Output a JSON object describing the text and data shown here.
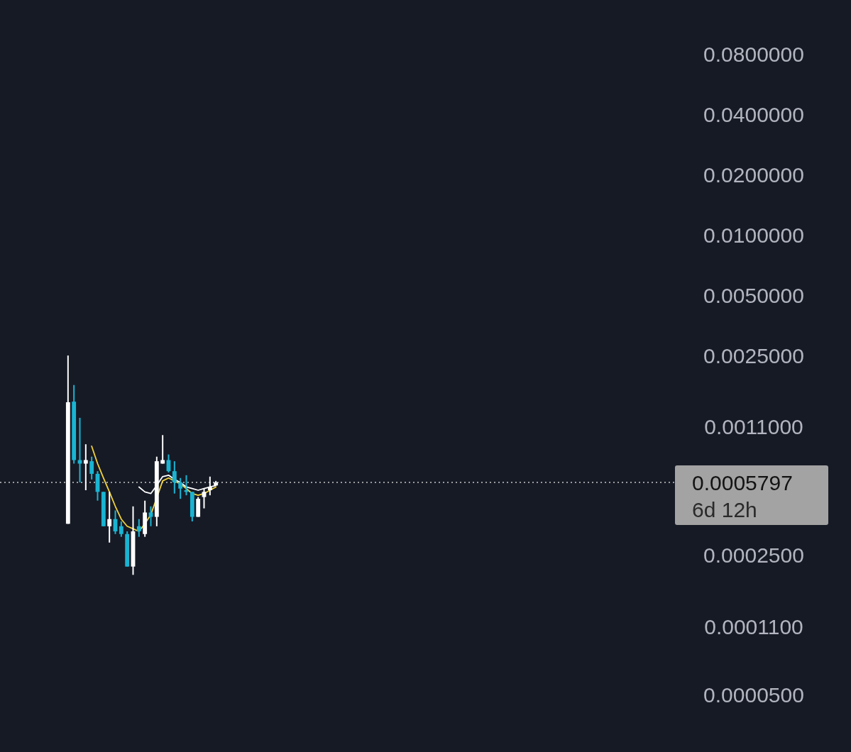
{
  "chart_data": {
    "type": "candlestick",
    "log": "y",
    "categories": [
      null,
      null,
      null,
      null,
      null,
      null,
      null,
      null,
      null,
      null,
      null,
      null,
      null,
      null,
      null,
      null,
      null,
      null,
      null,
      null,
      null,
      null,
      null,
      null,
      null,
      null,
      null,
      null,
      null,
      null,
      null,
      null,
      null,
      null,
      null,
      null,
      null,
      null,
      null,
      null,
      null,
      null,
      null,
      null,
      null,
      null,
      null,
      null,
      null,
      null,
      null,
      null,
      null,
      null,
      null,
      null,
      null,
      null,
      null,
      null,
      null,
      null,
      null,
      null,
      null,
      null,
      null,
      null,
      null,
      null,
      null,
      null,
      null,
      null,
      null,
      null,
      null,
      null,
      null,
      null,
      null,
      null,
      null,
      null,
      null,
      null,
      null,
      null,
      null,
      null,
      null,
      null,
      null,
      null,
      null,
      null,
      null,
      null,
      null,
      null,
      null,
      null,
      null,
      null,
      null,
      null,
      null,
      null,
      null,
      null,
      null,
      null,
      null,
      null
    ],
    "ohlc": [
      null,
      null,
      null,
      null,
      null,
      null,
      null,
      null,
      null,
      null,
      null,
      [
        0.00036,
        0.0025,
        0.00036,
        0.00146
      ],
      [
        0.00147,
        0.00178,
        0.00072,
        0.00075
      ],
      [
        0.00075,
        0.00122,
        0.00058,
        0.00072
      ],
      [
        0.00072,
        0.0009,
        0.00053,
        0.00075
      ],
      [
        0.00074,
        0.00078,
        0.0006,
        0.00064
      ],
      [
        0.00064,
        0.00066,
        0.00047,
        0.00052
      ],
      [
        0.00052,
        0.00052,
        0.00035,
        0.00035
      ],
      [
        0.00035,
        0.00052,
        0.00029,
        0.00038
      ],
      [
        0.00038,
        0.00042,
        0.00032,
        0.00033
      ],
      [
        0.00035,
        0.00037,
        0.00031,
        0.00032
      ],
      [
        0.00032,
        0.00033,
        0.00022,
        0.00022
      ],
      [
        0.00022,
        0.00044,
        0.0002,
        0.00033
      ],
      [
        0.00035,
        0.00038,
        0.00031,
        0.00033
      ],
      [
        0.00032,
        0.00047,
        0.00031,
        0.00041
      ],
      [
        0.00041,
        0.00044,
        0.00035,
        0.00039
      ],
      [
        0.00039,
        0.00078,
        0.00035,
        0.00074
      ],
      [
        0.00072,
        0.001,
        0.00072,
        0.00075
      ],
      [
        0.00075,
        0.0008,
        0.00065,
        0.00066
      ],
      [
        0.00066,
        0.00074,
        0.00051,
        0.00058
      ],
      [
        0.00058,
        0.00061,
        0.00048,
        0.00054
      ],
      [
        0.00053,
        0.00063,
        0.0005,
        0.00052
      ],
      [
        0.00052,
        0.00052,
        0.00037,
        0.00039
      ],
      [
        0.00039,
        0.00049,
        0.00039,
        0.00048
      ],
      [
        0.00049,
        0.00054,
        0.00043,
        0.00052
      ],
      [
        0.00053,
        0.00062,
        0.0005,
        0.00055
      ],
      [
        0.00056,
        0.00059,
        0.00056,
        0.00058
      ],
      null,
      null,
      null,
      null,
      null,
      null,
      null,
      null,
      null,
      null,
      null,
      null,
      null,
      null,
      null,
      null,
      null,
      null,
      null,
      null,
      null,
      null,
      null,
      null,
      null,
      null,
      null,
      null,
      null,
      null,
      null,
      null,
      null,
      null,
      null,
      null,
      null,
      null,
      null,
      null,
      null,
      null,
      null,
      null,
      null,
      null,
      null,
      null,
      null,
      null,
      null,
      null,
      null,
      null,
      null,
      null,
      null,
      null,
      null,
      null,
      null,
      null,
      null,
      null,
      null,
      null,
      null,
      null,
      null,
      null,
      null,
      null,
      null,
      null,
      null,
      null,
      null
    ],
    "colors": [
      null,
      null,
      null,
      null,
      null,
      null,
      null,
      null,
      null,
      null,
      null,
      "#ffffff",
      "#1ab4d2",
      "#1ab4d2",
      "#ffffff",
      "#1ab4d2",
      "#1ab4d2",
      "#1ab4d2",
      "#ffffff",
      "#1ab4d2",
      "#1ab4d2",
      "#1ab4d2",
      "#ffffff",
      "#1ab4d2",
      "#ffffff",
      "#1ab4d2",
      "#ffffff",
      "#ffffff",
      "#1ab4d2",
      "#1ab4d2",
      "#1ab4d2",
      "#1ab4d2",
      "#1ab4d2",
      "#ffffff",
      "#ffffff",
      "#ffffff",
      "#ffffff",
      null,
      null,
      null,
      null,
      null,
      null,
      null,
      null,
      null,
      null,
      null,
      null,
      null,
      null,
      null,
      null,
      null,
      null,
      null,
      null,
      null,
      null,
      null,
      null,
      null,
      null,
      null,
      null,
      null,
      null,
      null,
      null,
      null,
      null,
      null,
      null,
      null,
      null,
      null,
      null,
      null,
      null,
      null,
      null,
      null,
      null,
      null,
      null,
      null,
      null,
      null,
      null,
      null,
      null,
      null,
      null,
      null,
      null,
      null,
      null,
      null,
      null,
      null,
      null,
      null,
      null,
      null,
      null,
      null,
      null,
      null,
      null,
      null,
      null,
      null,
      null,
      null
    ],
    "series": [
      {
        "type": "line",
        "color": "#f2d33c",
        "values": [
          null,
          null,
          null,
          null,
          null,
          null,
          null,
          null,
          null,
          null,
          null,
          null,
          null,
          null,
          null,
          0.00088,
          0.00072,
          0.00061,
          0.00052,
          0.00044,
          0.00038,
          0.00035,
          0.00034,
          0.00033,
          0.00036,
          0.0004,
          null,
          0.00059,
          0.00061,
          0.00059,
          0.00057,
          0.00054,
          0.00051,
          0.0005,
          0.00051,
          0.00053,
          0.00055,
          null,
          null,
          null,
          null,
          null,
          null,
          null,
          null,
          null,
          null,
          null,
          null,
          null,
          null,
          null,
          null,
          null,
          null,
          null,
          null,
          null,
          null,
          null,
          null,
          null,
          null,
          null,
          null,
          null,
          null,
          null,
          null,
          null,
          null,
          null,
          null,
          null,
          null,
          null,
          null,
          null,
          null,
          null,
          null,
          null,
          null,
          null,
          null,
          null,
          null,
          null,
          null,
          null,
          null,
          null,
          null,
          null,
          null,
          null,
          null,
          null,
          null,
          null,
          null,
          null,
          null,
          null,
          null,
          null,
          null,
          null,
          null,
          null,
          null,
          null,
          null,
          null
        ]
      },
      {
        "type": "line",
        "color": "#ffffff",
        "values": [
          null,
          null,
          null,
          null,
          null,
          null,
          null,
          null,
          null,
          null,
          null,
          null,
          null,
          null,
          null,
          null,
          null,
          null,
          null,
          null,
          null,
          null,
          null,
          0.00055,
          0.00052,
          0.00051,
          0.00056,
          0.00062,
          0.00063,
          0.0006,
          0.00058,
          0.00055,
          0.00054,
          0.00053,
          0.00054,
          0.00055,
          0.00056,
          null,
          null,
          null,
          null,
          null,
          null,
          null,
          null,
          null,
          null,
          null,
          null,
          null,
          null,
          null,
          null,
          null,
          null,
          null,
          null,
          null,
          null,
          null,
          null,
          null,
          null,
          null,
          null,
          null,
          null,
          null,
          null,
          null,
          null,
          null,
          null,
          null,
          null,
          null,
          null,
          null,
          null,
          null,
          null,
          null,
          null,
          null,
          null,
          null,
          null,
          null,
          null,
          null,
          null,
          null,
          null,
          null,
          null,
          null,
          null,
          null,
          null,
          null,
          null,
          null,
          null,
          null,
          null,
          null,
          null,
          null,
          null,
          null,
          null,
          null,
          null,
          null
        ]
      }
    ],
    "ylim": [
      2.6e-05,
      0.15
    ],
    "yticks": [
      {
        "value": 0.08,
        "label": "0.0800000"
      },
      {
        "value": 0.04,
        "label": "0.0400000"
      },
      {
        "value": 0.02,
        "label": "0.0200000"
      },
      {
        "value": 0.01,
        "label": "0.0100000"
      },
      {
        "value": 0.005,
        "label": "0.0050000"
      },
      {
        "value": 0.0025,
        "label": "0.0025000"
      },
      {
        "value": 0.0011,
        "label": "0.0011000"
      },
      {
        "value": 0.00025,
        "label": "0.0002500"
      },
      {
        "value": 0.00011,
        "label": "0.0001100"
      },
      {
        "value": 5e-05,
        "label": "0.0000500"
      }
    ],
    "ref_lines": [
      {
        "axis": "y",
        "value": 0.0005797,
        "label": "0.0005797",
        "color": "#c8c8c8",
        "line_style": "dotted"
      }
    ],
    "annotations": [
      "6d 12h"
    ],
    "tick_labels": "y",
    "grid": false
  }
}
